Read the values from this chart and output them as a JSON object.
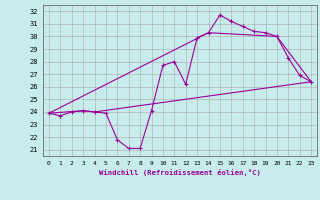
{
  "xlabel": "Windchill (Refroidissement éolien,°C)",
  "background_color": "#c8ecec",
  "line_color": "#990099",
  "grid_color": "#aaaaaa",
  "xlim": [
    -0.5,
    23.5
  ],
  "ylim": [
    20.5,
    32.5
  ],
  "xticks": [
    0,
    1,
    2,
    3,
    4,
    5,
    6,
    7,
    8,
    9,
    10,
    11,
    12,
    13,
    14,
    15,
    16,
    17,
    18,
    19,
    20,
    21,
    22,
    23
  ],
  "yticks": [
    21,
    22,
    23,
    24,
    25,
    26,
    27,
    28,
    29,
    30,
    31,
    32
  ],
  "line1_x": [
    0,
    1,
    2,
    3,
    4,
    5,
    6,
    7,
    8,
    9,
    10,
    11,
    12,
    13,
    14,
    15,
    16,
    17,
    18,
    19,
    20,
    21,
    22,
    23
  ],
  "line1_y": [
    23.9,
    23.7,
    24.0,
    24.1,
    24.0,
    23.9,
    21.8,
    21.1,
    21.1,
    24.1,
    27.7,
    28.0,
    26.2,
    29.9,
    30.3,
    31.7,
    31.2,
    30.8,
    30.4,
    30.3,
    30.0,
    28.3,
    26.9,
    26.4
  ],
  "line2_x": [
    0,
    3,
    4,
    23
  ],
  "line2_y": [
    23.9,
    24.1,
    24.0,
    26.4
  ],
  "line3_x": [
    0,
    14,
    20,
    23
  ],
  "line3_y": [
    23.9,
    30.3,
    30.0,
    26.4
  ]
}
